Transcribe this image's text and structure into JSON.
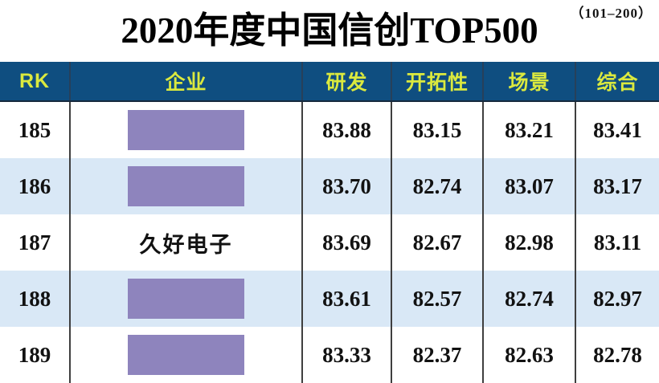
{
  "page": {
    "range_badge": "（101–200）",
    "title": "2020年度中国信创TOP500"
  },
  "table": {
    "columns": [
      {
        "key": "rk",
        "label": "RK"
      },
      {
        "key": "company",
        "label": "企业"
      },
      {
        "key": "rnd",
        "label": "研发"
      },
      {
        "key": "pioneering",
        "label": "开拓性"
      },
      {
        "key": "scene",
        "label": "场景"
      },
      {
        "key": "overall",
        "label": "综合"
      }
    ],
    "rows": [
      {
        "rank": "185",
        "company": "",
        "redacted": true,
        "rnd": "83.88",
        "pioneering": "83.15",
        "scene": "83.21",
        "overall": "83.41"
      },
      {
        "rank": "186",
        "company": "",
        "redacted": true,
        "rnd": "83.70",
        "pioneering": "82.74",
        "scene": "83.07",
        "overall": "83.17"
      },
      {
        "rank": "187",
        "company": "久好电子",
        "redacted": false,
        "rnd": "83.69",
        "pioneering": "82.67",
        "scene": "82.98",
        "overall": "83.11"
      },
      {
        "rank": "188",
        "company": "",
        "redacted": true,
        "rnd": "83.61",
        "pioneering": "82.57",
        "scene": "82.74",
        "overall": "82.97"
      },
      {
        "rank": "189",
        "company": "",
        "redacted": true,
        "rnd": "83.33",
        "pioneering": "82.37",
        "scene": "82.63",
        "overall": "82.78"
      }
    ]
  },
  "colors": {
    "header_bg": "#0f4e80",
    "header_text": "#dbe93e",
    "row_alt_bg": "#d9e8f6",
    "redaction_purple": "#8e84bd",
    "grid_line": "#3f3f3f"
  }
}
